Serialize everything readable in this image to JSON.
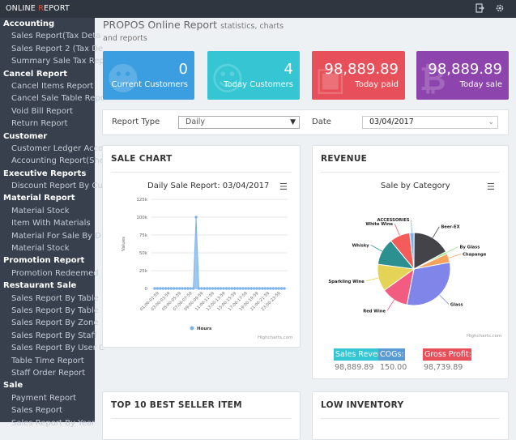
{
  "app": {
    "logo_prefix": "ONLINE ",
    "logo_accent": "R",
    "logo_suffix": "EPORT"
  },
  "topbar_icons": [
    "logout-icon",
    "settings-icon"
  ],
  "sidebar": {
    "sections": [
      {
        "title": "Accounting",
        "items": [
          "Sales Report(Tax Deta",
          "Sales Report 2 (Tax De",
          "Summary Sale Tax Rep"
        ]
      },
      {
        "title": "Cancel Report",
        "items": [
          "Cancel Items Report",
          "Cancel Sale Table Repo",
          "Void Bill Report",
          "Return Report"
        ]
      },
      {
        "title": "Customer",
        "items": [
          "Customer Ledger Acco",
          "Accounting Report(She"
        ]
      },
      {
        "title": "Executive Reports",
        "items": [
          "Discount Report By Cu"
        ]
      },
      {
        "title": "Material Report",
        "items": [
          "Material Stock",
          "Item With Materials",
          "Material For Sale By D",
          "Material Stock"
        ]
      },
      {
        "title": "Promotion Report",
        "items": [
          "Promotion Redeemed"
        ]
      },
      {
        "title": "Restaurant Sale",
        "items": [
          "Sales Report By Table",
          "Sales Report By Table",
          "Sales Report By Zone",
          "Sales Report By Staff",
          "Sales Report By User C",
          "Table Time Report",
          "Staff Order Report"
        ]
      },
      {
        "title": "Sale",
        "items": [
          "Payment Report",
          "Sales Report",
          "Sales Report By Year"
        ]
      }
    ]
  },
  "header": {
    "title": "PROPOS Online Report",
    "subtitle": "statistics, charts and reports"
  },
  "stats": [
    {
      "value": "0",
      "label": "Current Customers",
      "color": "#3b9ee0"
    },
    {
      "value": "4",
      "label": "Today Customers",
      "color": "#36c6d3"
    },
    {
      "value": "98,889.89",
      "label": "Today paid",
      "color": "#e7505a"
    },
    {
      "value": "98,889.89",
      "label": "Today sale",
      "color": "#8e44ad"
    }
  ],
  "filters": {
    "report_type_label": "Report Type",
    "report_type_value": "Daily",
    "date_label": "Date",
    "date_value": "03/04/2017"
  },
  "sale_chart": {
    "panel_title": "SALE CHART",
    "credits": "Highcharts.com",
    "chart_data": {
      "type": "area",
      "title": "Daily Sale Report: 03/04/2017",
      "ylabel": "Values",
      "ylim": [
        0,
        125000
      ],
      "yticks": [
        "0",
        "25k",
        "50k",
        "75k",
        "100k",
        "125k"
      ],
      "legend": "bottom-center",
      "series": [
        {
          "name": "Hours",
          "values": [
            0,
            0,
            0,
            0,
            0,
            0,
            0,
            0,
            0,
            0,
            0,
            0,
            0,
            0,
            0,
            100000,
            0,
            0,
            0,
            0,
            0,
            0,
            0,
            0,
            0,
            0,
            0,
            0,
            0,
            0,
            0,
            0,
            0,
            0,
            0,
            0,
            0,
            0,
            0,
            0,
            0,
            0,
            0,
            0,
            0,
            0,
            0,
            0
          ]
        }
      ],
      "x_tick_labels": [
        "01:00-01:59",
        "03:00-03:59",
        "05:00-05:59",
        "07:00-07:59",
        "09:00-09:59",
        "11:00-11:59",
        "13:00-13:59",
        "15:00-15:59",
        "17:00-17:59",
        "19:00-19:59",
        "21:00-21:59",
        "23:00-23:59"
      ]
    }
  },
  "revenue": {
    "panel_title": "REVENUE",
    "credits": "Highcharts.com",
    "chart_data": {
      "type": "pie",
      "title": "Sale by Category",
      "slices": [
        {
          "name": "ACCESSORIES",
          "value": 2,
          "color": "#7cb5ec"
        },
        {
          "name": "Beer-EX",
          "value": 17,
          "color": "#434348"
        },
        {
          "name": "By Glass",
          "value": 1,
          "color": "#90ed7d"
        },
        {
          "name": "Chapange",
          "value": 4,
          "color": "#f7a35c"
        },
        {
          "name": "Glass",
          "value": 31,
          "color": "#8085e9"
        },
        {
          "name": "Red Wine",
          "value": 12,
          "color": "#f15c80"
        },
        {
          "name": "Sparkling Wine",
          "value": 12,
          "color": "#e4d354"
        },
        {
          "name": "Whisky",
          "value": 12,
          "color": "#2b908f"
        },
        {
          "name": "White Wine",
          "value": 9,
          "color": "#f45b5b"
        }
      ]
    },
    "summary": [
      {
        "label": "Sales Reven",
        "value": "98,889.89",
        "color": "#36c6d3"
      },
      {
        "label": "COGs:",
        "value": "150.00",
        "color": "#5b9bd5"
      },
      {
        "label": "Gross Profit:",
        "value": "98,739.89",
        "color": "#e7505a"
      }
    ]
  },
  "top10": {
    "panel_title": "TOP 10 BEST SELLER ITEM"
  },
  "low_inventory": {
    "panel_title": "LOW INVENTORY"
  }
}
